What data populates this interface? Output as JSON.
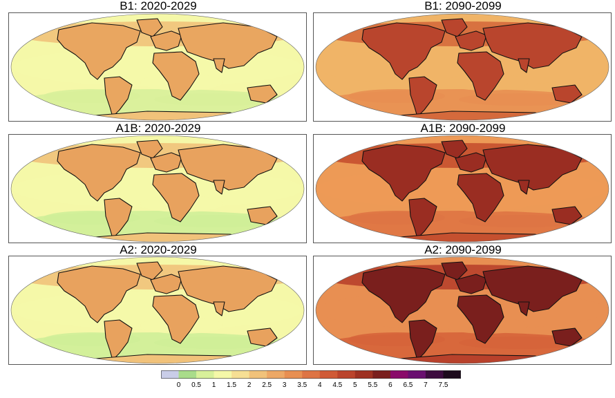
{
  "panels": [
    {
      "title": "B1: 2020-2029",
      "scenario": "B1",
      "period": "2020-2029",
      "palette": [
        "#f5f8a8",
        "#d8f09a",
        "#f1c27a",
        "#e9a660"
      ]
    },
    {
      "title": "B1: 2090-2099",
      "scenario": "B1",
      "period": "2090-2099",
      "palette": [
        "#f0b467",
        "#e88f52",
        "#d56a3c",
        "#b9452d"
      ]
    },
    {
      "title": "A1B: 2020-2029",
      "scenario": "A1B",
      "period": "2020-2029",
      "palette": [
        "#f5f8a8",
        "#cfee98",
        "#f1c27a",
        "#e8a25e"
      ]
    },
    {
      "title": "A1B: 2090-2099",
      "scenario": "A1B",
      "period": "2090-2099",
      "palette": [
        "#ed9a56",
        "#de7444",
        "#c5502f",
        "#9a2d22"
      ]
    },
    {
      "title": "A2: 2020-2029",
      "scenario": "A2",
      "period": "2020-2029",
      "palette": [
        "#f5f8a8",
        "#cfee98",
        "#f1c27a",
        "#e8a25e"
      ]
    },
    {
      "title": "A2: 2090-2099",
      "scenario": "A2",
      "period": "2090-2099",
      "palette": [
        "#e88f52",
        "#d6643a",
        "#b8412b",
        "#7a1f1d"
      ]
    }
  ],
  "legend": {
    "labels": [
      "0",
      "0.5",
      "1",
      "1.5",
      "2",
      "2.5",
      "3",
      "3.5",
      "4",
      "4.5",
      "5",
      "5.5",
      "6",
      "6.5",
      "7",
      "7.5"
    ],
    "colors": [
      "#c9cde8",
      "#a9dc8a",
      "#d8f09a",
      "#f5f8a8",
      "#f6df94",
      "#f1c27a",
      "#eda866",
      "#e88f52",
      "#de7444",
      "#d05a36",
      "#bb442c",
      "#9e3122",
      "#7a1f1d",
      "#8a0a6a",
      "#6a0f70",
      "#3d0c3f",
      "#1c0a1c"
    ]
  }
}
